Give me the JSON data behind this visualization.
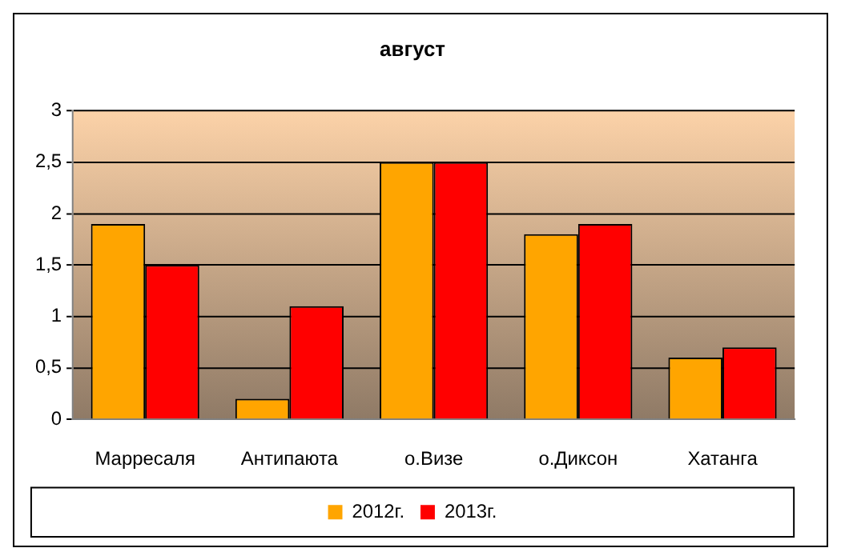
{
  "chart_data": {
    "type": "bar",
    "title": "август",
    "categories": [
      "Марресаля",
      "Антипаюта",
      "о.Визе",
      "о.Диксон",
      "Хатанга"
    ],
    "series": [
      {
        "name": "2012г.",
        "color": "#ffa500",
        "values": [
          1.9,
          0.2,
          2.5,
          1.8,
          0.6
        ]
      },
      {
        "name": "2013г.",
        "color": "#ff0000",
        "values": [
          1.5,
          1.1,
          2.5,
          1.9,
          0.7
        ]
      }
    ],
    "ylim": [
      0,
      3
    ],
    "yticks": [
      0,
      {
        "value": 0.5,
        "label": "0,5"
      },
      1,
      {
        "value": 1.5,
        "label": "1,5"
      },
      2,
      {
        "value": 2.5,
        "label": "2,5"
      },
      3
    ],
    "grid": "y",
    "legend": "bottom"
  }
}
